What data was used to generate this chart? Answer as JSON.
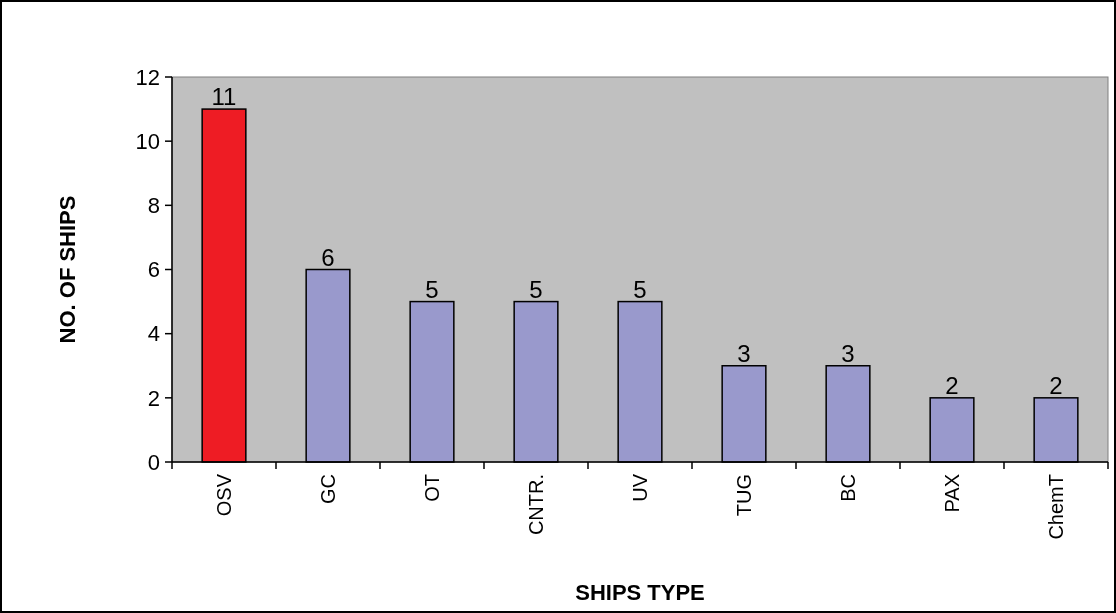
{
  "chart_data": {
    "type": "bar",
    "xlabel": "SHIPS TYPE",
    "ylabel": "NO. OF SHIPS",
    "categories": [
      "OSV",
      "GC",
      "OT",
      "CNTR.",
      "UV",
      "TUG",
      "BC",
      "PAX",
      "ChemT"
    ],
    "values": [
      11,
      6,
      5,
      5,
      5,
      3,
      3,
      2,
      2
    ],
    "colors": [
      "#ee1c24",
      "#9999cc",
      "#9999cc",
      "#9999cc",
      "#9999cc",
      "#9999cc",
      "#9999cc",
      "#9999cc",
      "#9999cc"
    ],
    "ylim": [
      0,
      12
    ],
    "yticks": [
      0,
      2,
      4,
      6,
      8,
      10,
      12
    ],
    "data_labels": true,
    "grid": false
  }
}
